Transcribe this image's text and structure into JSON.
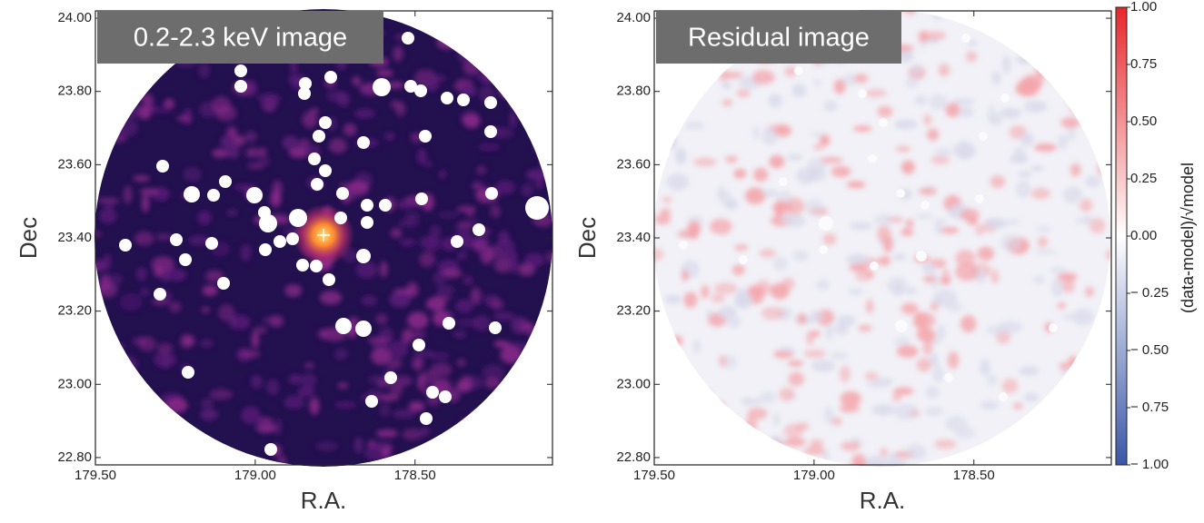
{
  "chart_data": [
    {
      "type": "image",
      "title": "0.2-2.3 keV image",
      "xlabel": "R.A.",
      "ylabel": "Dec",
      "xlim": [
        179.5,
        178.07
      ],
      "ylim": [
        22.78,
        24.02
      ],
      "xticks": [
        {
          "value": 179.5,
          "label": "179.50"
        },
        {
          "value": 179.0,
          "label": "179.00"
        },
        {
          "value": 178.5,
          "label": "178.50"
        }
      ],
      "yticks": [
        {
          "value": 22.8,
          "label": "22.80"
        },
        {
          "value": 23.0,
          "label": "23.00"
        },
        {
          "value": 23.2,
          "label": "23.20"
        },
        {
          "value": 23.4,
          "label": "23.40"
        },
        {
          "value": 23.6,
          "label": "23.60"
        },
        {
          "value": 23.8,
          "label": "23.80"
        },
        {
          "value": 24.0,
          "label": "24.00"
        }
      ],
      "color": "#22104f"
    },
    {
      "type": "image",
      "title": "Residual image",
      "xlabel": "R.A.",
      "ylabel": "Dec",
      "xlim": [
        179.5,
        178.07
      ],
      "ylim": [
        22.78,
        24.02
      ],
      "xticks": [
        {
          "value": 179.5,
          "label": "179.50"
        },
        {
          "value": 179.0,
          "label": "179.00"
        },
        {
          "value": 178.5,
          "label": "178.50"
        }
      ],
      "yticks": [
        {
          "value": 22.8,
          "label": "22.80"
        },
        {
          "value": 23.0,
          "label": "23.00"
        },
        {
          "value": 23.2,
          "label": "23.20"
        },
        {
          "value": 23.4,
          "label": "23.40"
        },
        {
          "value": 23.6,
          "label": "23.60"
        },
        {
          "value": 23.8,
          "label": "23.80"
        },
        {
          "value": 24.0,
          "label": "24.00"
        }
      ],
      "color": "#f1f1f7",
      "colorbar": {
        "label": "(data-model)/√model",
        "lim": [
          -1,
          1
        ],
        "colors": [
          "#3a56a8",
          "#ffffff",
          "#e8262b"
        ],
        "ticks": [
          {
            "value": 1,
            "label": "1.00"
          },
          {
            "value": 0.75,
            "label": "0.75"
          },
          {
            "value": 0.5,
            "label": "0.50"
          },
          {
            "value": 0.25,
            "label": "0.25"
          },
          {
            "value": 0,
            "label": "0.00"
          },
          {
            "value": -0.25,
            "label": "− 0.25"
          },
          {
            "value": -0.5,
            "label": "− 0.50"
          },
          {
            "value": -0.75,
            "label": "− 0.75"
          },
          {
            "value": -1,
            "label": "− 1.00"
          }
        ]
      }
    }
  ]
}
